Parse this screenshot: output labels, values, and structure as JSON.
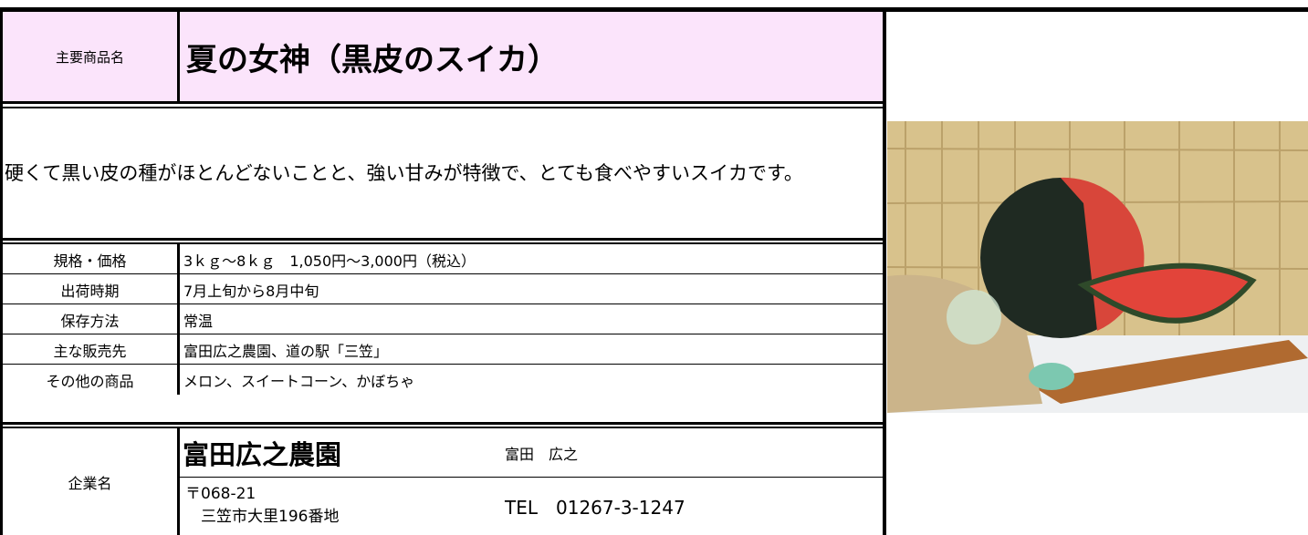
{
  "header": {
    "label": "主要商品名",
    "title": "夏の女神（黒皮のスイカ）"
  },
  "description": "硬くて黒い皮の種がほとんどないことと、強い甘みが特徴で、とても食べやすいスイカです。",
  "specs": [
    [
      "規格・価格",
      "3ｋｇ～8ｋｇ　1,050円～3,000円（税込）"
    ],
    [
      "出荷時期",
      "7月上旬から8月中旬"
    ],
    [
      "保存方法",
      "常温"
    ],
    [
      "主な販売先",
      "富田広之農園、道の駅「三笠」"
    ],
    [
      "その他の商品",
      "メロン、スイートコーン、かぼちゃ"
    ]
  ],
  "company": {
    "label": "企業名",
    "name": "富田広之農園",
    "representative": "富田　広之",
    "postal": "〒068-21",
    "address": "三笠市大里196番地",
    "tel": "TEL　01267-3-1247"
  }
}
